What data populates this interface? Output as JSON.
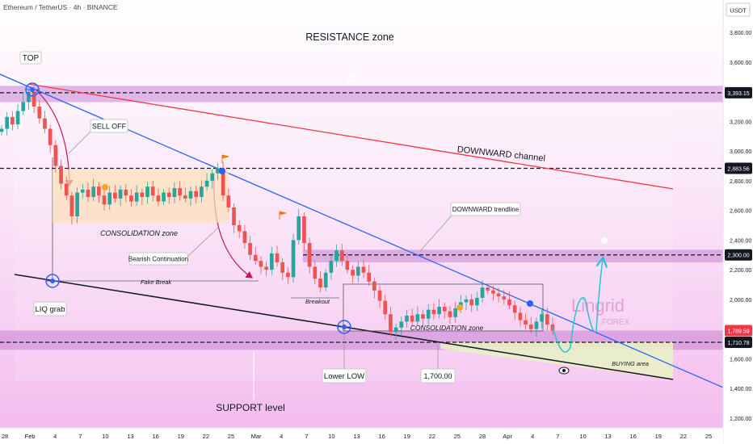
{
  "header": {
    "symbol_line": "Ethereum / TetherUS · 4h · BINANCE",
    "currency": "USDT"
  },
  "colors": {
    "candle_up": "#26a69a",
    "candle_down": "#ef5350",
    "resistance_line": "#f23645",
    "trend_line": "#2962ff",
    "support_line": "#131722",
    "zone_band": "#c17ad0",
    "background_top": "#ffffff",
    "background_bottom": "#f6c3f2",
    "forecast": "#22c7d6"
  },
  "chart_data": {
    "type": "candlestick",
    "x_tick_labels": [
      "28",
      "Feb",
      "4",
      "7",
      "10",
      "13",
      "16",
      "19",
      "22",
      "25",
      "Mar",
      "4",
      "7",
      "10",
      "13",
      "16",
      "19",
      "22",
      "25",
      "28",
      "Apr",
      "4",
      "7",
      "10",
      "13",
      "16",
      "19",
      "22",
      "25"
    ],
    "y_ticks": [
      "3,800.00",
      "3,600.00",
      "3,200.00",
      "3,000.00",
      "2,800.00",
      "2,600.00",
      "2,400.00",
      "2,200.00",
      "2,000.00",
      "1,600.00",
      "1,400.00",
      "1,200.00"
    ],
    "ylim": [
      1130,
      4080
    ],
    "price_labels": [
      {
        "text": "3,393.15",
        "value": 3393.15,
        "style": "dark"
      },
      {
        "text": "2,883.56",
        "value": 2883.56,
        "style": "dark"
      },
      {
        "text": "2,300.00",
        "value": 2300.0,
        "style": "dark"
      },
      {
        "text": "1,789.59",
        "value": 1789.59,
        "style": "red"
      },
      {
        "text": "1,710.78",
        "value": 1710.78,
        "style": "dark"
      }
    ],
    "horizontal_levels": [
      3393.15,
      2883.56,
      2300.0,
      1710.78
    ],
    "zones": [
      {
        "value_low": 3330,
        "value_high": 3440
      },
      {
        "value_low": 2250,
        "value_high": 2335
      },
      {
        "value_low": 1660,
        "value_high": 1790
      }
    ],
    "ohlc_path": [
      3150,
      3230,
      3180,
      3270,
      3330,
      3393,
      3300,
      3220,
      3150,
      3040,
      2900,
      2780,
      2700,
      2560,
      2720,
      2740,
      2690,
      2760,
      2700,
      2640,
      2720,
      2680,
      2740,
      2700,
      2660,
      2720,
      2690,
      2760,
      2700,
      2660,
      2720,
      2690,
      2750,
      2700,
      2680,
      2730,
      2690,
      2760,
      2800,
      2850,
      2884,
      2700,
      2620,
      2500,
      2460,
      2380,
      2300,
      2260,
      2220,
      2200,
      2310,
      2250,
      2180,
      2150,
      2400,
      2560,
      2380,
      2220,
      2140,
      2080,
      2180,
      2260,
      2330,
      2260,
      2200,
      2160,
      2220,
      2180,
      2120,
      2060,
      1990,
      1900,
      1780,
      1810,
      1850,
      1890,
      1850,
      1900,
      1870,
      1930,
      1900,
      1950,
      1920,
      1880,
      1940,
      1980,
      2000,
      1960,
      2010,
      2080,
      2060,
      2040,
      2020,
      2000,
      1960,
      1910,
      1860,
      1830,
      1800,
      1850,
      1900,
      1830,
      1790
    ]
  },
  "annotations": {
    "resistance_zone": "RESISTANCE zone",
    "top": "TOP",
    "sell_off": "SELL OFF",
    "downward_channel": "DOWNWARD channel",
    "consolidation_zone_1": "CONSOLIDATION zone",
    "bearish_continuation": "Bearish Continuation",
    "fake_break": "Fake Break",
    "liq_grab": "LIQ grab",
    "downward_trendline": "DOWNWARD trendline",
    "breakout": "Breakout",
    "consolidation_zone_2": "CONSOLIDATION zone",
    "lower_low": "Lower LOW",
    "level_1700": "1,700.00",
    "support_level": "SUPPORT level",
    "buying_area": "BUYING area"
  },
  "watermark": {
    "brand": "Lingrid",
    "sub": "FOREX"
  }
}
